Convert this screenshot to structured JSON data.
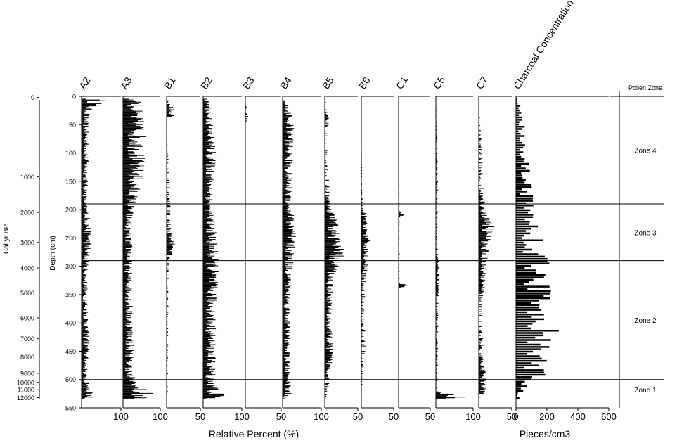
{
  "chart_data": {
    "type": "bar",
    "orientation": "horizontal-stratigraphic",
    "depth_axis": {
      "label": "Depth (cm)",
      "range": [
        0,
        550
      ],
      "ticks": [
        0,
        50,
        100,
        150,
        200,
        250,
        300,
        350,
        400,
        450,
        500,
        550
      ]
    },
    "age_axis": {
      "label": "Cal yr BP",
      "ticks": [
        {
          "label": "0",
          "depth": 2
        },
        {
          "label": "1000",
          "depth": 142
        },
        {
          "label": "2000",
          "depth": 205
        },
        {
          "label": "3000",
          "depth": 258
        },
        {
          "label": "4000",
          "depth": 303
        },
        {
          "label": "5000",
          "depth": 347
        },
        {
          "label": "6000",
          "depth": 391
        },
        {
          "label": "7000",
          "depth": 428
        },
        {
          "label": "8000",
          "depth": 460
        },
        {
          "label": "9000",
          "depth": 489
        },
        {
          "label": "10000",
          "depth": 505
        },
        {
          "label": "11000",
          "depth": 518
        },
        {
          "label": "12000",
          "depth": 532
        }
      ]
    },
    "xlabel_relative": "Relative Percent (%)",
    "xlabel_charcoal": "Pieces/cm3",
    "taxa": [
      {
        "name": "A2",
        "max": 100,
        "ticks": [
          "100"
        ],
        "profile": [
          [
            0,
            8
          ],
          [
            10,
            45
          ],
          [
            20,
            18
          ],
          [
            40,
            10
          ],
          [
            80,
            12
          ],
          [
            150,
            10
          ],
          [
            190,
            8
          ],
          [
            220,
            14
          ],
          [
            260,
            16
          ],
          [
            300,
            10
          ],
          [
            350,
            9
          ],
          [
            400,
            12
          ],
          [
            450,
            11
          ],
          [
            500,
            8
          ],
          [
            520,
            20
          ],
          [
            530,
            22
          ],
          [
            535,
            4
          ]
        ]
      },
      {
        "name": "A3",
        "max": 100,
        "ticks": [
          "100"
        ],
        "profile": [
          [
            0,
            6
          ],
          [
            10,
            35
          ],
          [
            30,
            30
          ],
          [
            60,
            38
          ],
          [
            100,
            36
          ],
          [
            150,
            32
          ],
          [
            190,
            20
          ],
          [
            230,
            12
          ],
          [
            270,
            16
          ],
          [
            300,
            14
          ],
          [
            350,
            15
          ],
          [
            400,
            17
          ],
          [
            450,
            18
          ],
          [
            490,
            16
          ],
          [
            510,
            28
          ],
          [
            525,
            50
          ],
          [
            532,
            50
          ],
          [
            535,
            4
          ]
        ]
      },
      {
        "name": "B1",
        "max": 50,
        "ticks": [
          "50"
        ],
        "profile": [
          [
            0,
            0
          ],
          [
            35,
            10
          ],
          [
            37,
            0
          ],
          [
            160,
            3
          ],
          [
            235,
            4
          ],
          [
            260,
            8
          ],
          [
            300,
            2
          ],
          [
            535,
            1
          ]
        ]
      },
      {
        "name": "B2",
        "max": 100,
        "ticks": [
          "100"
        ],
        "profile": [
          [
            0,
            4
          ],
          [
            20,
            14
          ],
          [
            60,
            16
          ],
          [
            100,
            20
          ],
          [
            160,
            18
          ],
          [
            200,
            14
          ],
          [
            250,
            22
          ],
          [
            300,
            24
          ],
          [
            350,
            22
          ],
          [
            400,
            20
          ],
          [
            450,
            19
          ],
          [
            500,
            20
          ],
          [
            520,
            28
          ],
          [
            530,
            38
          ],
          [
            535,
            4
          ]
        ]
      },
      {
        "name": "B3",
        "max": 50,
        "ticks": [
          "50"
        ],
        "profile": [
          [
            0,
            0
          ],
          [
            45,
            3
          ],
          [
            47,
            0
          ],
          [
            535,
            0
          ]
        ]
      },
      {
        "name": "B4",
        "max": 100,
        "ticks": [
          "100"
        ],
        "profile": [
          [
            0,
            2
          ],
          [
            30,
            14
          ],
          [
            60,
            18
          ],
          [
            100,
            16
          ],
          [
            150,
            14
          ],
          [
            200,
            16
          ],
          [
            230,
            22
          ],
          [
            260,
            20
          ],
          [
            300,
            16
          ],
          [
            350,
            13
          ],
          [
            400,
            12
          ],
          [
            450,
            11
          ],
          [
            500,
            12
          ],
          [
            520,
            18
          ],
          [
            535,
            2
          ]
        ]
      },
      {
        "name": "B5",
        "max": 50,
        "ticks": [
          "50"
        ],
        "profile": [
          [
            0,
            0
          ],
          [
            40,
            4
          ],
          [
            100,
            3
          ],
          [
            150,
            4
          ],
          [
            200,
            6
          ],
          [
            220,
            12
          ],
          [
            250,
            14
          ],
          [
            275,
            18
          ],
          [
            290,
            16
          ],
          [
            320,
            8
          ],
          [
            400,
            6
          ],
          [
            450,
            8
          ],
          [
            500,
            5
          ],
          [
            535,
            1
          ]
        ]
      },
      {
        "name": "B6",
        "max": 50,
        "ticks": [
          "50"
        ],
        "profile": [
          [
            0,
            0
          ],
          [
            180,
            1
          ],
          [
            220,
            6
          ],
          [
            260,
            8
          ],
          [
            300,
            6
          ],
          [
            330,
            4
          ],
          [
            400,
            3
          ],
          [
            440,
            5
          ],
          [
            480,
            2
          ],
          [
            535,
            0
          ]
        ]
      },
      {
        "name": "C1",
        "max": 50,
        "ticks": [
          "50"
        ],
        "profile": [
          [
            0,
            0
          ],
          [
            200,
            1
          ],
          [
            210,
            6
          ],
          [
            220,
            1
          ],
          [
            330,
            1
          ],
          [
            332,
            12
          ],
          [
            340,
            0
          ],
          [
            535,
            0
          ]
        ]
      },
      {
        "name": "C5",
        "max": 100,
        "ticks": [
          "100"
        ],
        "profile": [
          [
            0,
            0
          ],
          [
            30,
            2
          ],
          [
            200,
            4
          ],
          [
            260,
            3
          ],
          [
            300,
            6
          ],
          [
            400,
            4
          ],
          [
            500,
            3
          ],
          [
            520,
            3
          ],
          [
            532,
            55
          ],
          [
            535,
            0
          ]
        ]
      },
      {
        "name": "C7",
        "max": 50,
        "ticks": [
          "50"
        ],
        "profile": [
          [
            0,
            0
          ],
          [
            60,
            2
          ],
          [
            200,
            6
          ],
          [
            230,
            14
          ],
          [
            260,
            10
          ],
          [
            290,
            8
          ],
          [
            320,
            6
          ],
          [
            400,
            3
          ],
          [
            460,
            5
          ],
          [
            515,
            8
          ],
          [
            535,
            1
          ]
        ]
      }
    ],
    "charcoal": {
      "name": "Charcoal Concentration",
      "max": 600,
      "ticks": [
        "0",
        "200",
        "400",
        "600"
      ],
      "profile": [
        [
          0,
          3
        ],
        [
          30,
          30
        ],
        [
          60,
          40
        ],
        [
          100,
          55
        ],
        [
          150,
          65
        ],
        [
          200,
          80
        ],
        [
          250,
          110
        ],
        [
          290,
          130
        ],
        [
          320,
          140
        ],
        [
          350,
          160
        ],
        [
          400,
          180
        ],
        [
          430,
          150
        ],
        [
          460,
          120
        ],
        [
          490,
          130
        ],
        [
          510,
          60
        ],
        [
          525,
          25
        ],
        [
          535,
          8
        ]
      ]
    },
    "zone_boundaries": [
      190,
      290,
      500
    ],
    "pollen_zone": {
      "title": "Pollen Zone",
      "zones": [
        {
          "label": "Zone 4",
          "top": 0,
          "bottom": 190
        },
        {
          "label": "Zone 3",
          "top": 190,
          "bottom": 290
        },
        {
          "label": "Zone 2",
          "top": 290,
          "bottom": 500
        },
        {
          "label": "Zone 1",
          "top": 500,
          "bottom": 550
        }
      ]
    }
  }
}
